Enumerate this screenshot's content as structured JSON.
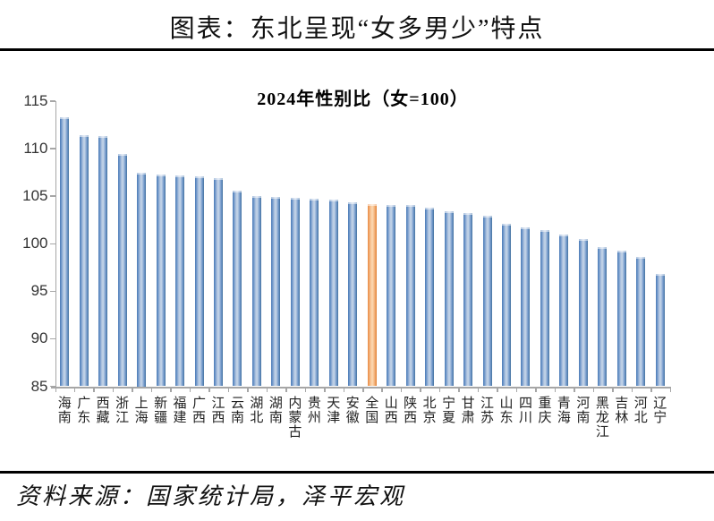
{
  "page": {
    "title": "图表：东北呈现“女多男少”特点",
    "footer": "资料来源：国家统计局，泽平宏观"
  },
  "chart_data": {
    "type": "bar",
    "title": "2024年性别比（女=100）",
    "categories": [
      "海南",
      "广东",
      "西藏",
      "浙江",
      "上海",
      "新疆",
      "福建",
      "广西",
      "江西",
      "云南",
      "湖北",
      "湖南",
      "内蒙古",
      "贵州",
      "天津",
      "安徽",
      "全国",
      "山西",
      "陕西",
      "北京",
      "宁夏",
      "甘肃",
      "江苏",
      "山东",
      "四川",
      "重庆",
      "青海",
      "河南",
      "黑龙江",
      "吉林",
      "河北",
      "辽宁"
    ],
    "values": [
      113.3,
      111.4,
      111.3,
      109.4,
      107.5,
      107.3,
      107.2,
      107.1,
      106.9,
      105.6,
      105.0,
      104.9,
      104.8,
      104.7,
      104.6,
      104.4,
      104.2,
      104.1,
      104.1,
      103.8,
      103.4,
      103.2,
      102.9,
      102.1,
      101.7,
      101.4,
      101.0,
      100.5,
      99.6,
      99.3,
      98.6,
      96.8
    ],
    "highlight_category": "全国",
    "highlight_index": 16,
    "ylim": [
      85,
      115
    ],
    "yticks": [
      115,
      110,
      105,
      100,
      95,
      90,
      85
    ],
    "xlabel": "",
    "ylabel": "",
    "grid": false,
    "legend": "none",
    "bar_color": "#4f81bd",
    "highlight_color": "#ed7d31",
    "axis_color": "#a6a6a6",
    "label_color": "#333333"
  }
}
